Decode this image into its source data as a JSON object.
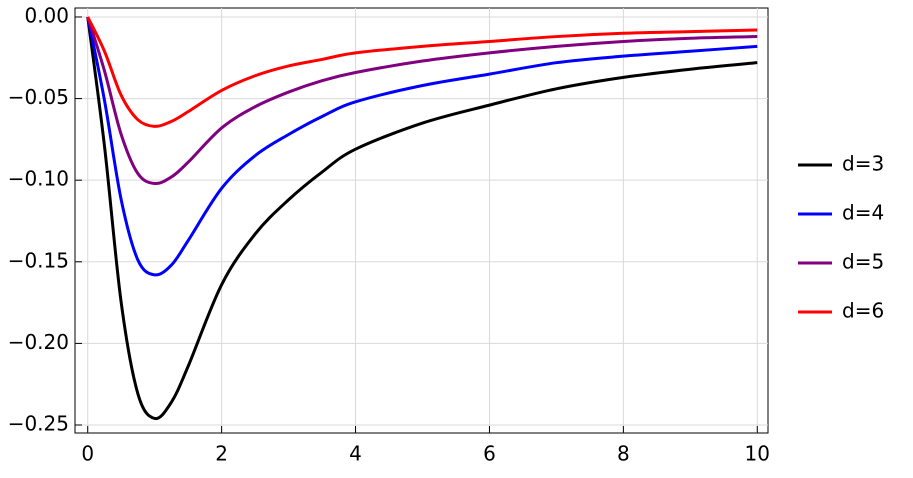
{
  "chart_data": {
    "type": "line",
    "x": [
      0,
      0.25,
      0.5,
      0.75,
      1,
      1.25,
      1.5,
      2,
      2.5,
      3,
      3.5,
      4,
      5,
      6,
      7,
      8,
      9,
      10
    ],
    "series": [
      {
        "name": "d=3",
        "color": "#000000",
        "values": [
          0,
          -0.079,
          -0.175,
          -0.231,
          -0.246,
          -0.236,
          -0.214,
          -0.164,
          -0.133,
          -0.112,
          -0.095,
          -0.081,
          -0.065,
          -0.054,
          -0.044,
          -0.037,
          -0.032,
          -0.028
        ]
      },
      {
        "name": "d=4",
        "color": "#0000ff",
        "values": [
          0,
          -0.051,
          -0.112,
          -0.149,
          -0.158,
          -0.152,
          -0.137,
          -0.105,
          -0.085,
          -0.072,
          -0.061,
          -0.052,
          -0.042,
          -0.035,
          -0.028,
          -0.024,
          -0.021,
          -0.018
        ]
      },
      {
        "name": "d=5",
        "color": "#800080",
        "values": [
          0,
          -0.033,
          -0.072,
          -0.096,
          -0.102,
          -0.098,
          -0.089,
          -0.068,
          -0.055,
          -0.046,
          -0.039,
          -0.034,
          -0.027,
          -0.022,
          -0.018,
          -0.015,
          -0.013,
          -0.012
        ]
      },
      {
        "name": "d=6",
        "color": "#ff0000",
        "values": [
          0,
          -0.021,
          -0.048,
          -0.063,
          -0.067,
          -0.064,
          -0.058,
          -0.045,
          -0.036,
          -0.03,
          -0.026,
          -0.022,
          -0.018,
          -0.015,
          -0.012,
          -0.01,
          -0.009,
          -0.008
        ]
      }
    ],
    "xlim": [
      -0.19,
      10.16
    ],
    "ylim": [
      -0.2549,
      0.0055
    ],
    "xticks": [
      0,
      2,
      4,
      6,
      8,
      10
    ],
    "yticks": [
      {
        "value": 0,
        "label": "0.00"
      },
      {
        "value": -0.05,
        "label": "−0.05"
      },
      {
        "value": -0.1,
        "label": "−0.10"
      },
      {
        "value": -0.15,
        "label": "−0.15"
      },
      {
        "value": -0.2,
        "label": "−0.20"
      },
      {
        "value": -0.25,
        "label": "−0.25"
      }
    ],
    "grid": true,
    "legend": "right"
  }
}
